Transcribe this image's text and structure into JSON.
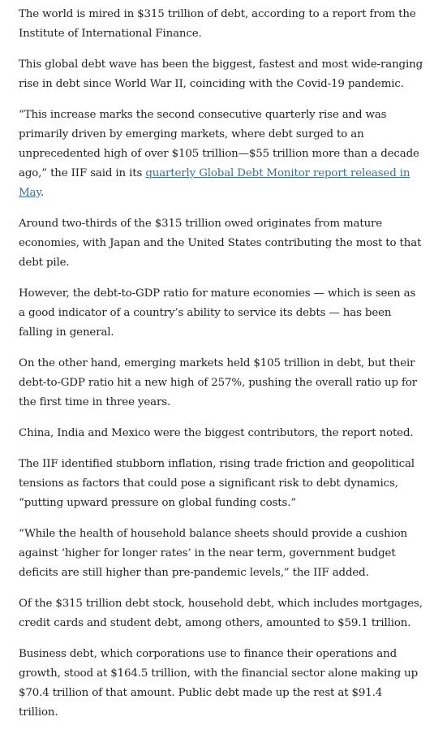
{
  "article": {
    "paragraphs": [
      "The world is mired in $315 trillion of debt, according to a report from the Institute of International Finance.",
      "This global debt wave has been the biggest, fastest and most wide-ranging rise in debt since World War II, coinciding with the Covid-19 pandemic.",
      {
        "before": "“This increase marks the second consecutive quarterly rise and was primarily driven by emerging markets, where debt surged to an unprecedented high of over $105 trillion—$55 trillion more than a decade ago,” the IIF said in its ",
        "link": "quarterly Global Debt Monitor report released in May",
        "after": "."
      },
      "Around two-thirds of the $315 trillion owed originates from mature economies, with Japan and the United States contributing the most to that debt pile.",
      "However, the debt-to-GDP ratio for mature economies — which is seen as a good indicator of a country’s ability to service its debts — has been falling in general.",
      "On the other hand, emerging markets held $105 trillion in debt, but their debt-to-GDP ratio hit a new high of 257%, pushing the overall ratio up for the first time in three years.",
      "China, India and Mexico were the biggest contributors, the report noted.",
      "The IIF identified stubborn inflation, rising trade friction and geopolitical tensions as factors that could pose a significant risk to debt dynamics, “putting upward pressure on global funding costs.”",
      "“While the health of household balance sheets should provide a cushion against ‘higher for longer rates’ in the near term, government budget deficits are still higher than pre-pandemic levels,” the IIF added.",
      "Of the $315 trillion debt stock, household debt, which includes mortgages, credit cards and student debt, among others, amounted to $59.1 trillion.",
      "Business debt, which corporations use to finance their operations and growth, stood at $164.5 trillion, with the financial sector alone making up $70.4 trillion of that amount. Public debt made up the rest at $91.4 trillion."
    ]
  },
  "colors": {
    "text": "#222222",
    "link": "#3b6f9a",
    "background": "#ffffff"
  }
}
